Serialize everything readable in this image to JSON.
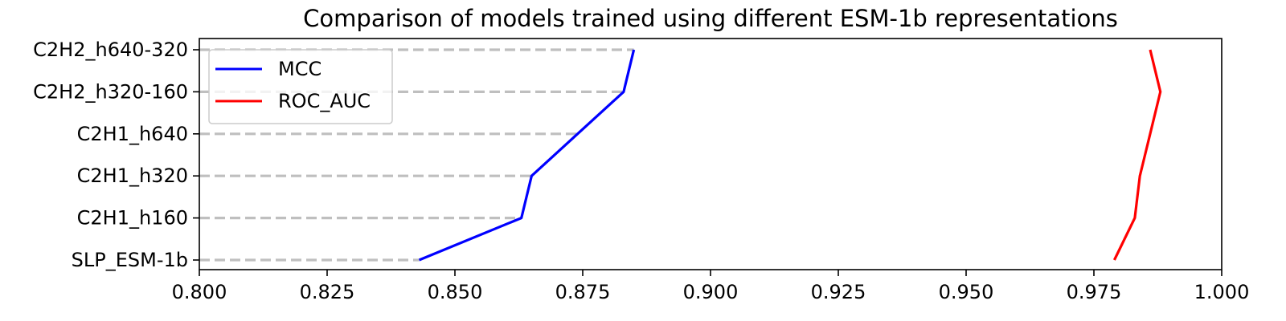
{
  "chart_data": {
    "type": "line",
    "orientation": "horizontal",
    "title": "Comparison of models trained using different ESM-1b representations",
    "xlabel": "",
    "ylabel": "",
    "xlim": [
      0.8,
      1.0
    ],
    "xticks": [
      "0.800",
      "0.825",
      "0.850",
      "0.875",
      "0.900",
      "0.925",
      "0.950",
      "0.975",
      "1.000"
    ],
    "categories": [
      "SLP_ESM-1b",
      "C2H1_h160",
      "C2H1_h320",
      "C2H1_h640",
      "C2H2_h320-160",
      "C2H2_h640-320"
    ],
    "series": [
      {
        "name": "MCC",
        "color": "#0000ff",
        "values": [
          0.843,
          0.863,
          0.865,
          0.874,
          0.883,
          0.885
        ]
      },
      {
        "name": "ROC_AUC",
        "color": "#ff0000",
        "values": [
          0.979,
          0.983,
          0.984,
          0.986,
          0.988,
          0.986
        ]
      }
    ],
    "guide_lines": {
      "style": "dashed",
      "color": "#bfbfbf",
      "end_x": [
        0.843,
        0.863,
        0.865,
        0.874,
        0.883,
        0.885
      ]
    },
    "legend": {
      "placement": "upper-left",
      "entries": [
        "MCC",
        "ROC_AUC"
      ]
    },
    "grid": false
  }
}
